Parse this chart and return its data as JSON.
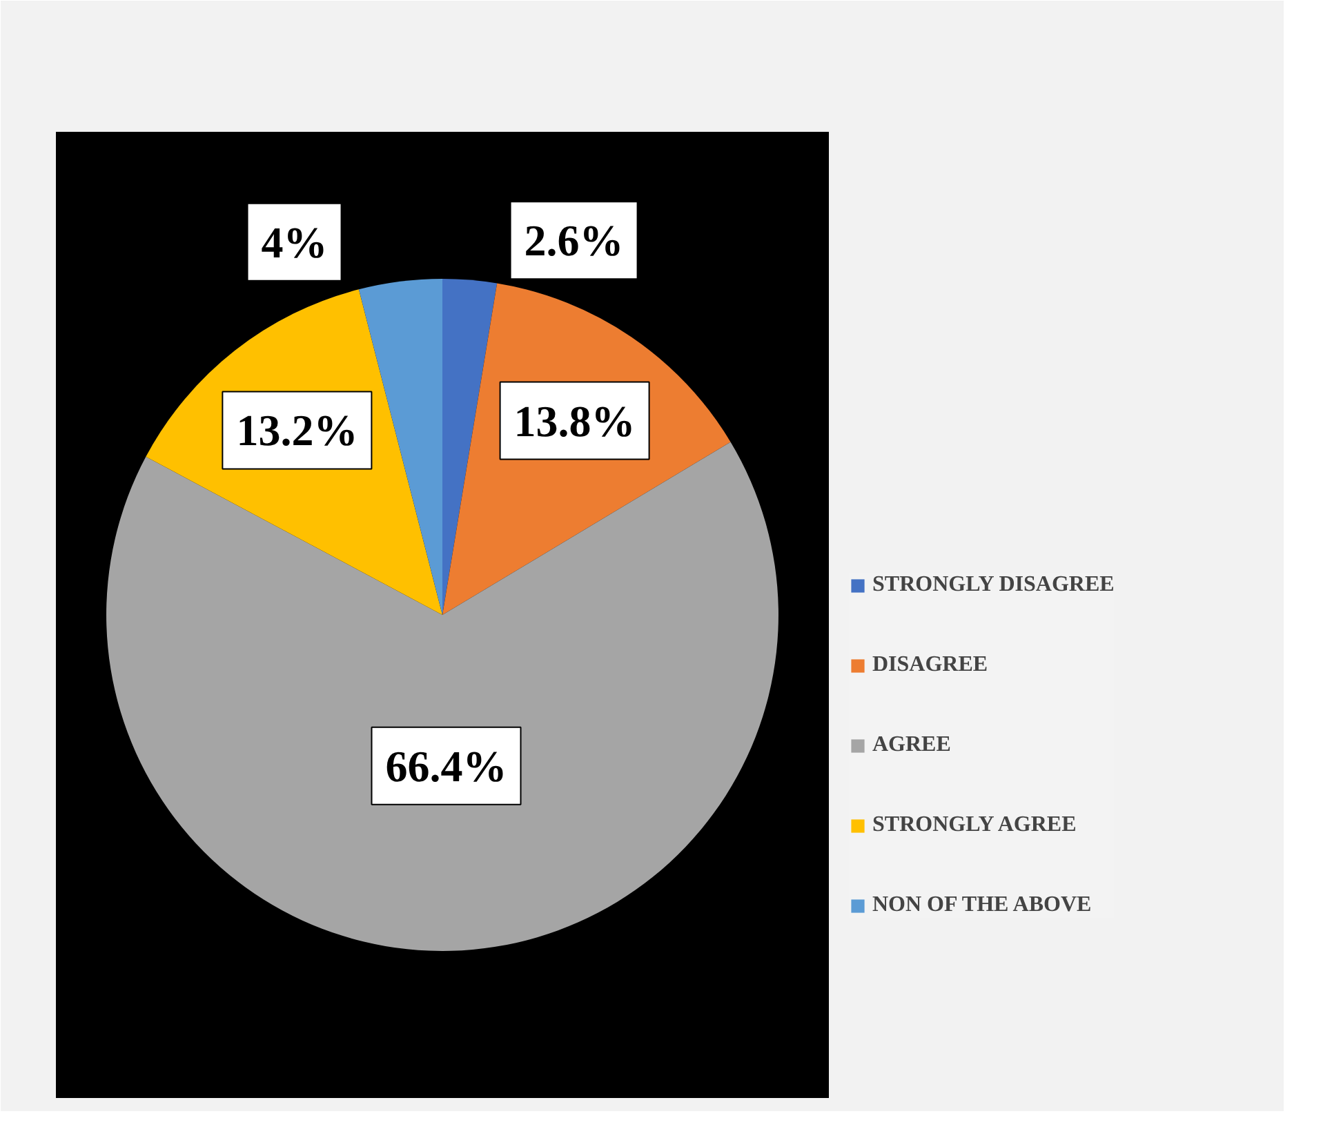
{
  "chart_data": {
    "type": "pie",
    "categories": [
      "STRONGLY DISAGREE",
      "DISAGREE",
      "AGREE",
      "STRONGLY AGREE",
      "NON OF THE ABOVE"
    ],
    "values": [
      2.6,
      13.8,
      66.4,
      13.2,
      4
    ],
    "colors": [
      "#4472c4",
      "#ed7d31",
      "#a5a5a5",
      "#ffc000",
      "#5b9bd5"
    ],
    "value_labels": [
      "2.6%",
      "13.8%",
      "66.4%",
      "13.2%",
      "4%"
    ],
    "legend": "right"
  }
}
